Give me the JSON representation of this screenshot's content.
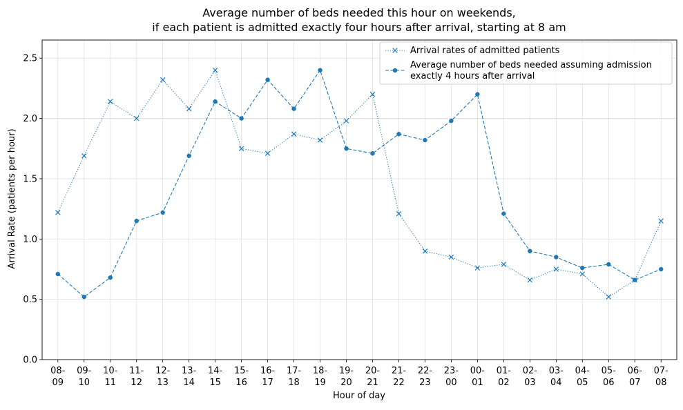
{
  "chart_data": {
    "type": "line",
    "title_line1": "Average number of beds needed this hour on weekends,",
    "title_line2": "if each patient is admitted exactly four hours after arrival, starting at 8 am",
    "xlabel": "Hour of day",
    "ylabel": "Arrival Rate (patients per hour)",
    "ylim": [
      0,
      2.65
    ],
    "yticks": [
      "0.0",
      "0.5",
      "1.0",
      "1.5",
      "2.0",
      "2.5"
    ],
    "ytick_values": [
      0,
      0.5,
      1.0,
      1.5,
      2.0,
      2.5
    ],
    "categories": [
      [
        "08-",
        "09"
      ],
      [
        "09-",
        "10"
      ],
      [
        "10-",
        "11"
      ],
      [
        "11-",
        "12"
      ],
      [
        "12-",
        "13"
      ],
      [
        "13-",
        "14"
      ],
      [
        "14-",
        "15"
      ],
      [
        "15-",
        "16"
      ],
      [
        "16-",
        "17"
      ],
      [
        "17-",
        "18"
      ],
      [
        "18-",
        "19"
      ],
      [
        "19-",
        "20"
      ],
      [
        "20-",
        "21"
      ],
      [
        "21-",
        "22"
      ],
      [
        "22-",
        "23"
      ],
      [
        "23-",
        "00"
      ],
      [
        "00-",
        "01"
      ],
      [
        "01-",
        "02"
      ],
      [
        "02-",
        "03"
      ],
      [
        "03-",
        "04"
      ],
      [
        "04-",
        "05"
      ],
      [
        "05-",
        "06"
      ],
      [
        "06-",
        "07"
      ],
      [
        "07-",
        "08"
      ]
    ],
    "grid": true,
    "legend_position": "top-right",
    "color": "#1f77b4",
    "series": [
      {
        "name": "Arrival rates of admitted patients",
        "marker": "x",
        "linestyle": "dotted",
        "values": [
          1.22,
          1.69,
          2.14,
          2.0,
          2.32,
          2.08,
          2.4,
          1.75,
          1.71,
          1.87,
          1.82,
          1.98,
          2.2,
          1.21,
          0.9,
          0.85,
          0.76,
          0.79,
          0.66,
          0.75,
          0.71,
          0.52,
          0.66,
          1.15
        ]
      },
      {
        "name": "Average number of beds needed assuming admission exactly 4 hours after arrival",
        "name_lines": [
          "Average number of beds needed assuming admission",
          "exactly 4 hours after arrival"
        ],
        "marker": "circle",
        "linestyle": "dashed",
        "values": [
          0.71,
          0.52,
          0.68,
          1.15,
          1.22,
          1.69,
          2.14,
          2.0,
          2.32,
          2.08,
          2.4,
          1.75,
          1.71,
          1.87,
          1.82,
          1.98,
          2.2,
          1.21,
          0.9,
          0.85,
          0.76,
          0.79,
          0.66,
          0.75
        ]
      }
    ]
  }
}
